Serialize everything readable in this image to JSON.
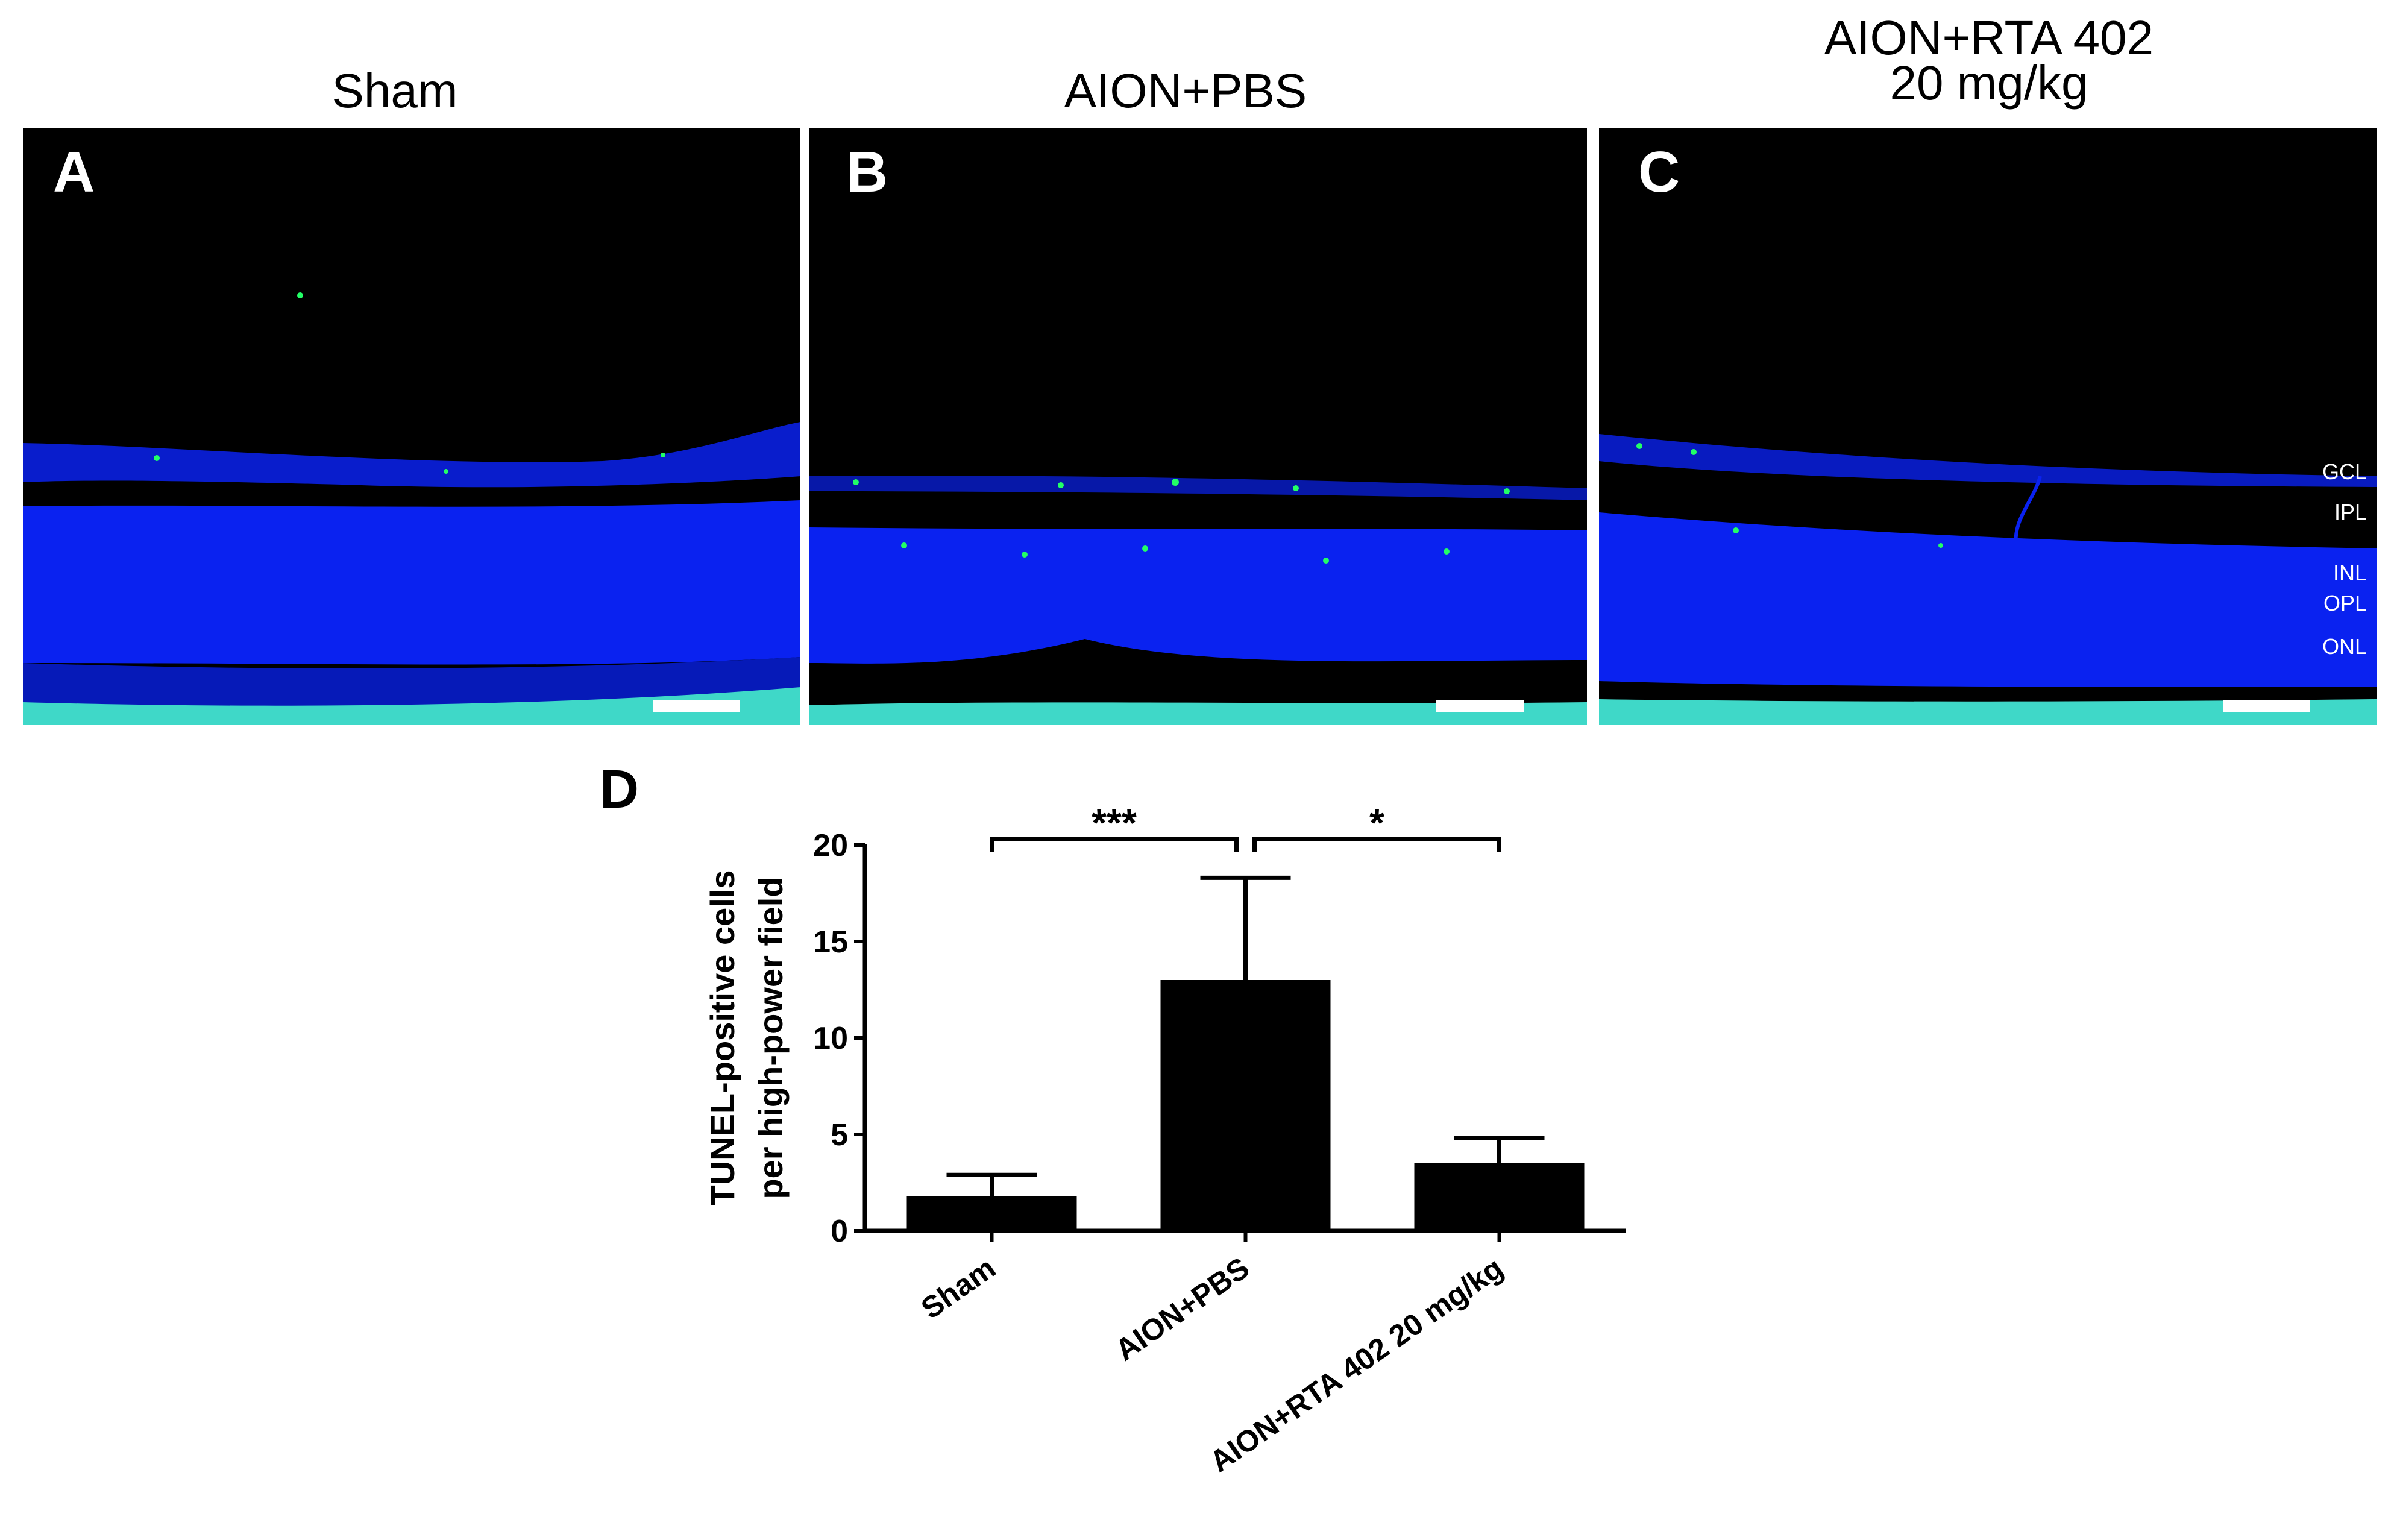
{
  "panels": [
    {
      "letter": "A",
      "title_lines": [
        "Sham"
      ],
      "scale_bar": true
    },
    {
      "letter": "B",
      "title_lines": [
        "AION+PBS"
      ],
      "scale_bar": true
    },
    {
      "letter": "C",
      "title_lines": [
        "AION+RTA 402",
        "20 mg/kg"
      ],
      "scale_bar": true,
      "layer_labels": [
        "GCL",
        "IPL",
        "INL",
        "OPL",
        "ONL"
      ]
    }
  ],
  "colors": {
    "background": "#000000",
    "dapi_blue": "#0a22f0",
    "tunel_green": "#22ff66",
    "bar_fill": "#000000",
    "scale_bar": "#ffffff"
  },
  "chart_data": {
    "panel_letter": "D",
    "type": "bar",
    "categories": [
      "Sham",
      "AION+PBS",
      "AION+RTA 402 20 mg/kg"
    ],
    "values": [
      1.8,
      13.0,
      3.5
    ],
    "error_upper": [
      2.9,
      18.3,
      4.8
    ],
    "ylabel_lines": [
      "TUNEL-positive cells",
      "per high-power field"
    ],
    "xlabel": "",
    "ylim": [
      0,
      20
    ],
    "yticks": [
      0,
      5,
      10,
      15,
      20
    ],
    "grid": false,
    "significance": [
      {
        "from": 0,
        "to": 1,
        "label": "***"
      },
      {
        "from": 1,
        "to": 2,
        "label": "*"
      }
    ]
  }
}
